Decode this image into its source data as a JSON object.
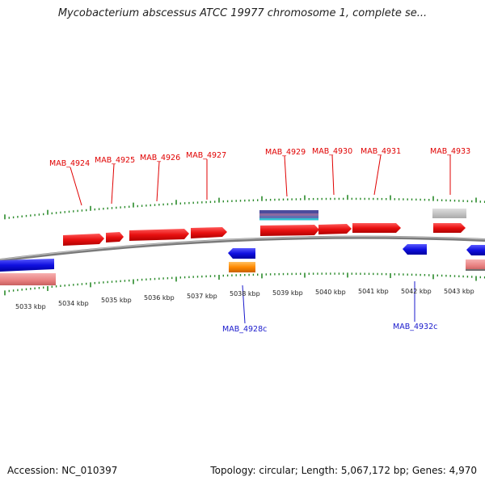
{
  "title": "Mycobacterium abscessus ATCC 19977 chromosome 1, complete se...",
  "footer": {
    "accession": "Accession: NC_010397",
    "summary": "Topology: circular; Length: 5,067,172 bp; Genes: 4,970"
  },
  "colors": {
    "forward_gene": "#e81010",
    "reverse_gene": "#1010e0",
    "tick": "#2a8a2a",
    "backbone": "#808080"
  },
  "kbp_labels": [
    "5033 kbp",
    "5034 kbp",
    "5035 kbp",
    "5036 kbp",
    "5037 kbp",
    "5038 kbp",
    "5039 kbp",
    "5040 kbp",
    "5041 kbp",
    "5042 kbp",
    "5043 kbp"
  ],
  "genes_forward": [
    "MAB_4924",
    "MAB_4925",
    "MAB_4926",
    "MAB_4927",
    "MAB_4929",
    "MAB_4930",
    "MAB_4931",
    "MAB_4933"
  ],
  "genes_reverse": [
    "MAB_4928c",
    "MAB_4932c"
  ]
}
